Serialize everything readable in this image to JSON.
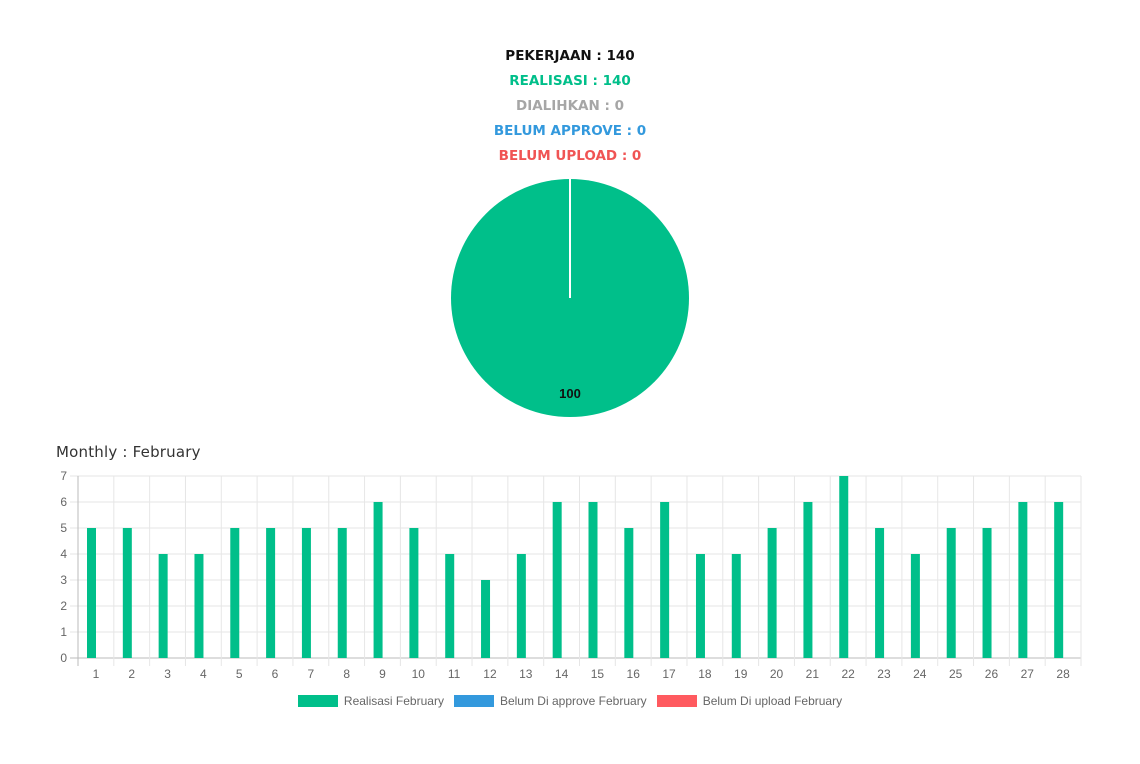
{
  "summary": {
    "pekerjaan": "PEKERJAAN : 140",
    "realisasi": "REALISASI : 140",
    "dialihkan": "DIALIHKAN : 0",
    "belum_approve": "BELUM APPROVE : 0",
    "belum_upload": "BELUM UPLOAD : 0"
  },
  "colors": {
    "black": "#111111",
    "green": "#00BF8A",
    "gray": "#A6A6A6",
    "blue": "#3399DD",
    "red": "#F05454"
  },
  "monthly_title": "Monthly : February",
  "chart_data": [
    {
      "type": "pie",
      "slices": [
        {
          "label": "Realisasi",
          "value": 100,
          "color": "#00BF8A"
        },
        {
          "label": "Dialihkan",
          "value": 0,
          "color": "#A6A6A6"
        },
        {
          "label": "Belum Approve",
          "value": 0,
          "color": "#3399DD"
        },
        {
          "label": "Belum Upload",
          "value": 0,
          "color": "#F05454"
        }
      ],
      "data_label": "100"
    },
    {
      "type": "bar",
      "title": "Monthly : February",
      "categories": [
        "1",
        "2",
        "3",
        "4",
        "5",
        "6",
        "7",
        "8",
        "9",
        "10",
        "11",
        "12",
        "13",
        "14",
        "15",
        "16",
        "17",
        "18",
        "19",
        "20",
        "21",
        "22",
        "23",
        "24",
        "25",
        "26",
        "27",
        "28"
      ],
      "series": [
        {
          "name": "Realisasi February",
          "color": "#00BF8A",
          "values": [
            5,
            5,
            4,
            4,
            5,
            5,
            5,
            5,
            6,
            5,
            4,
            3,
            4,
            6,
            6,
            5,
            6,
            4,
            4,
            5,
            6,
            7,
            5,
            4,
            5,
            5,
            6,
            6
          ]
        },
        {
          "name": "Belum Di approve February",
          "color": "#3399DD",
          "values": [
            0,
            0,
            0,
            0,
            0,
            0,
            0,
            0,
            0,
            0,
            0,
            0,
            0,
            0,
            0,
            0,
            0,
            0,
            0,
            0,
            0,
            0,
            0,
            0,
            0,
            0,
            0,
            0
          ]
        },
        {
          "name": "Belum Di upload February",
          "color": "#FF5A5F",
          "values": [
            0,
            0,
            0,
            0,
            0,
            0,
            0,
            0,
            0,
            0,
            0,
            0,
            0,
            0,
            0,
            0,
            0,
            0,
            0,
            0,
            0,
            0,
            0,
            0,
            0,
            0,
            0,
            0
          ]
        }
      ],
      "yticks": [
        "0",
        "1",
        "2",
        "3",
        "4",
        "5",
        "6",
        "7"
      ],
      "ylim": [
        0,
        7
      ],
      "grid": true,
      "legend": "bottom"
    }
  ]
}
